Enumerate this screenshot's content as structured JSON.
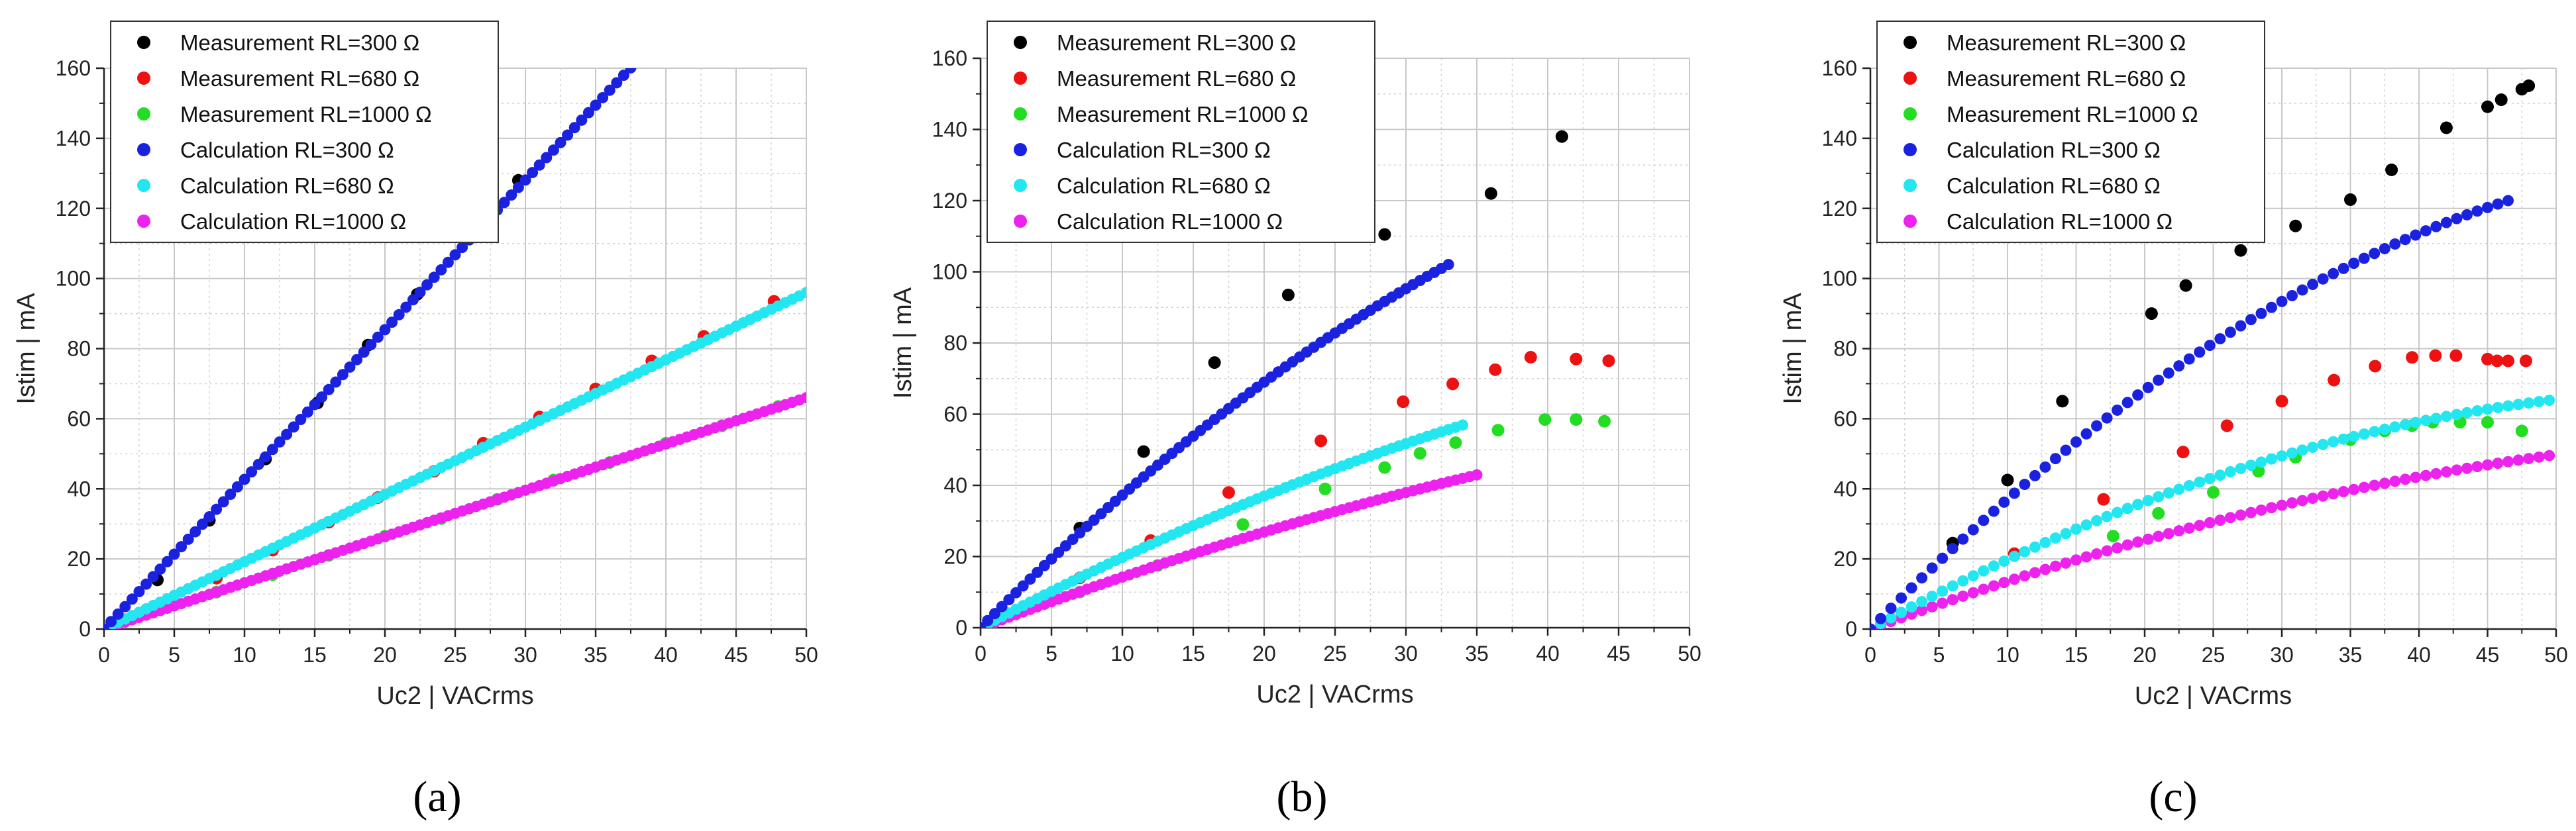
{
  "figure": {
    "labels": [
      "(a)",
      "(b)",
      "(c)"
    ]
  },
  "colors": {
    "meas300": "#000000",
    "meas680": "#ee1111",
    "meas1000": "#22dd22",
    "calc300": "#1a22e0",
    "calc680": "#22e6f0",
    "calc1000": "#ee22ee"
  },
  "chart_data": [
    {
      "type": "scatter",
      "panel_label": "(a)",
      "xlabel": "Uc2 | VACrms",
      "ylabel": "Istim | mA",
      "xlim": [
        0,
        50
      ],
      "ylim": [
        0,
        160
      ],
      "xticks": [
        0,
        5,
        10,
        15,
        20,
        25,
        30,
        35,
        40,
        45,
        50
      ],
      "yticks": [
        0,
        20,
        40,
        60,
        80,
        100,
        120,
        140,
        160
      ],
      "grid": true,
      "legend_position": "top-left",
      "series": [
        {
          "name": "Measurement RL=300 Ω",
          "kind": "measurement",
          "color_key": "meas300",
          "points": [
            [
              3.8,
              14.0
            ],
            [
              7.5,
              31.0
            ],
            [
              11.5,
              48.5
            ],
            [
              15.2,
              64.5
            ],
            [
              18.8,
              81.0
            ],
            [
              22.3,
              95.5
            ],
            [
              26.0,
              112.0
            ],
            [
              29.5,
              128.0
            ]
          ]
        },
        {
          "name": "Measurement RL=680 Ω",
          "kind": "measurement",
          "color_key": "meas680",
          "points": [
            [
              4.0,
              7.0
            ],
            [
              8.0,
              14.5
            ],
            [
              12.0,
              22.5
            ],
            [
              16.0,
              30.5
            ],
            [
              19.5,
              37.5
            ],
            [
              23.5,
              45.0
            ],
            [
              27.0,
              53.0
            ],
            [
              31.0,
              60.5
            ],
            [
              35.0,
              68.5
            ],
            [
              39.0,
              76.5
            ],
            [
              42.7,
              83.5
            ],
            [
              47.7,
              93.5
            ]
          ]
        },
        {
          "name": "Measurement RL=1000 Ω",
          "kind": "measurement",
          "color_key": "meas1000",
          "points": [
            [
              4.0,
              5.5
            ],
            [
              8.0,
              10.5
            ],
            [
              12.0,
              15.5
            ],
            [
              16.0,
              21.0
            ],
            [
              20.0,
              26.5
            ],
            [
              24.0,
              31.5
            ],
            [
              28.0,
              37.0
            ],
            [
              32.0,
              42.5
            ],
            [
              36.0,
              47.5
            ],
            [
              40.0,
              53.0
            ],
            [
              44.0,
              58.0
            ],
            [
              48.0,
              63.5
            ]
          ]
        },
        {
          "name": "Calculation RL=300 Ω",
          "kind": "calculation",
          "color_key": "calc300",
          "x_range": [
            0,
            37.5
          ],
          "step": 0.5,
          "formula": "linear",
          "coeffs": [
            4.27
          ]
        },
        {
          "name": "Calculation RL=680 Ω",
          "kind": "calculation",
          "color_key": "calc680",
          "x_range": [
            0,
            50
          ],
          "step": 0.5,
          "formula": "linear",
          "coeffs": [
            1.92
          ]
        },
        {
          "name": "Calculation RL=1000 Ω",
          "kind": "calculation",
          "color_key": "calc1000",
          "x_range": [
            0,
            50
          ],
          "step": 0.5,
          "formula": "linear",
          "coeffs": [
            1.32
          ]
        }
      ]
    },
    {
      "type": "scatter",
      "panel_label": "(b)",
      "xlabel": "Uc2 | VACrms",
      "ylabel": "Istim | mA",
      "xlim": [
        0,
        50
      ],
      "ylim": [
        0,
        160
      ],
      "xticks": [
        0,
        5,
        10,
        15,
        20,
        25,
        30,
        35,
        40,
        45,
        50
      ],
      "yticks": [
        0,
        20,
        40,
        60,
        80,
        100,
        120,
        140,
        160
      ],
      "grid": true,
      "legend_position": "top-left",
      "series": [
        {
          "name": "Measurement RL=300 Ω",
          "kind": "measurement",
          "color_key": "meas300",
          "points": [
            [
              7.0,
              28.0
            ],
            [
              11.5,
              49.5
            ],
            [
              16.5,
              74.5
            ],
            [
              21.7,
              93.5
            ],
            [
              28.5,
              110.5
            ],
            [
              36.0,
              122.0
            ],
            [
              41.0,
              138.0
            ]
          ]
        },
        {
          "name": "Measurement RL=680 Ω",
          "kind": "measurement",
          "color_key": "meas680",
          "points": [
            [
              7.0,
              14.0
            ],
            [
              12.0,
              24.5
            ],
            [
              17.5,
              38.0
            ],
            [
              24.0,
              52.5
            ],
            [
              29.8,
              63.5
            ],
            [
              33.3,
              68.5
            ],
            [
              36.3,
              72.5
            ],
            [
              38.8,
              76.0
            ],
            [
              42.0,
              75.5
            ],
            [
              44.3,
              75.0
            ]
          ]
        },
        {
          "name": "Measurement RL=1000 Ω",
          "kind": "measurement",
          "color_key": "meas1000",
          "points": [
            [
              7.0,
              10.0
            ],
            [
              12.5,
              17.5
            ],
            [
              18.5,
              29.0
            ],
            [
              24.3,
              39.0
            ],
            [
              28.5,
              45.0
            ],
            [
              31.0,
              49.0
            ],
            [
              33.5,
              52.0
            ],
            [
              36.5,
              55.5
            ],
            [
              39.8,
              58.5
            ],
            [
              42.0,
              58.5
            ],
            [
              44.0,
              58.0
            ]
          ]
        },
        {
          "name": "Calculation RL=300 Ω",
          "kind": "calculation",
          "color_key": "calc300",
          "x_range": [
            0,
            33
          ],
          "step": 0.5,
          "formula": "quadratic",
          "coeffs": [
            4.0,
            -0.0275
          ]
        },
        {
          "name": "Calculation RL=680 Ω",
          "kind": "calculation",
          "color_key": "calc680",
          "x_range": [
            0,
            34
          ],
          "step": 0.5,
          "formula": "quadratic",
          "coeffs": [
            2.1,
            -0.0125
          ]
        },
        {
          "name": "Calculation RL=1000 Ω",
          "kind": "calculation",
          "color_key": "calc1000",
          "x_range": [
            0,
            35
          ],
          "step": 0.5,
          "formula": "quadratic",
          "coeffs": [
            1.5,
            -0.0078
          ]
        }
      ]
    },
    {
      "type": "scatter",
      "panel_label": "(c)",
      "xlabel": "Uc2 | VACrms",
      "ylabel": "Istim | mA",
      "xlim": [
        0,
        50
      ],
      "ylim": [
        0,
        160
      ],
      "xticks": [
        0,
        5,
        10,
        15,
        20,
        25,
        30,
        35,
        40,
        45,
        50
      ],
      "yticks": [
        0,
        20,
        40,
        60,
        80,
        100,
        120,
        140,
        160
      ],
      "grid": true,
      "legend_position": "top-left",
      "series": [
        {
          "name": "Measurement RL=300 Ω",
          "kind": "measurement",
          "color_key": "meas300",
          "points": [
            [
              6.0,
              24.5
            ],
            [
              10.0,
              42.5
            ],
            [
              14.0,
              65.0
            ],
            [
              20.5,
              90.0
            ],
            [
              23.0,
              98.0
            ],
            [
              27.0,
              108.0
            ],
            [
              31.0,
              115.0
            ],
            [
              35.0,
              122.5
            ],
            [
              38.0,
              131.0
            ],
            [
              42.0,
              143.0
            ],
            [
              45.0,
              149.0
            ],
            [
              46.0,
              151.0
            ],
            [
              47.5,
              154.0
            ],
            [
              48.0,
              155.0
            ]
          ]
        },
        {
          "name": "Measurement RL=680 Ω",
          "kind": "measurement",
          "color_key": "meas680",
          "points": [
            [
              10.5,
              21.5
            ],
            [
              17.0,
              37.0
            ],
            [
              22.8,
              50.5
            ],
            [
              26.0,
              58.0
            ],
            [
              30.0,
              65.0
            ],
            [
              33.8,
              71.0
            ],
            [
              36.8,
              75.0
            ],
            [
              39.5,
              77.5
            ],
            [
              41.2,
              78.0
            ],
            [
              42.7,
              78.0
            ],
            [
              45.0,
              77.0
            ],
            [
              45.7,
              76.5
            ],
            [
              46.5,
              76.5
            ],
            [
              47.8,
              76.5
            ]
          ]
        },
        {
          "name": "Measurement RL=1000 Ω",
          "kind": "measurement",
          "color_key": "meas1000",
          "points": [
            [
              17.7,
              26.5
            ],
            [
              21.0,
              33.0
            ],
            [
              25.0,
              39.0
            ],
            [
              28.3,
              45.0
            ],
            [
              31.0,
              49.0
            ],
            [
              35.0,
              54.0
            ],
            [
              37.5,
              56.5
            ],
            [
              39.5,
              58.0
            ],
            [
              41.0,
              59.0
            ],
            [
              43.0,
              59.0
            ],
            [
              45.0,
              59.0
            ],
            [
              47.5,
              56.5
            ]
          ]
        },
        {
          "name": "Calculation RL=300 Ω",
          "kind": "calculation",
          "color_key": "calc300",
          "x_range": [
            0,
            47
          ],
          "step": 0.75,
          "formula": "quadratic",
          "coeffs": [
            4.0,
            -0.0295
          ]
        },
        {
          "name": "Calculation RL=680 Ω",
          "kind": "calculation",
          "color_key": "calc680",
          "x_range": [
            0,
            50
          ],
          "step": 0.75,
          "formula": "quadratic",
          "coeffs": [
            2.15,
            -0.0168
          ]
        },
        {
          "name": "Calculation RL=1000 Ω",
          "kind": "calculation",
          "color_key": "calc1000",
          "x_range": [
            0,
            50
          ],
          "step": 0.75,
          "formula": "quadratic",
          "coeffs": [
            1.45,
            -0.0091
          ]
        }
      ]
    }
  ]
}
